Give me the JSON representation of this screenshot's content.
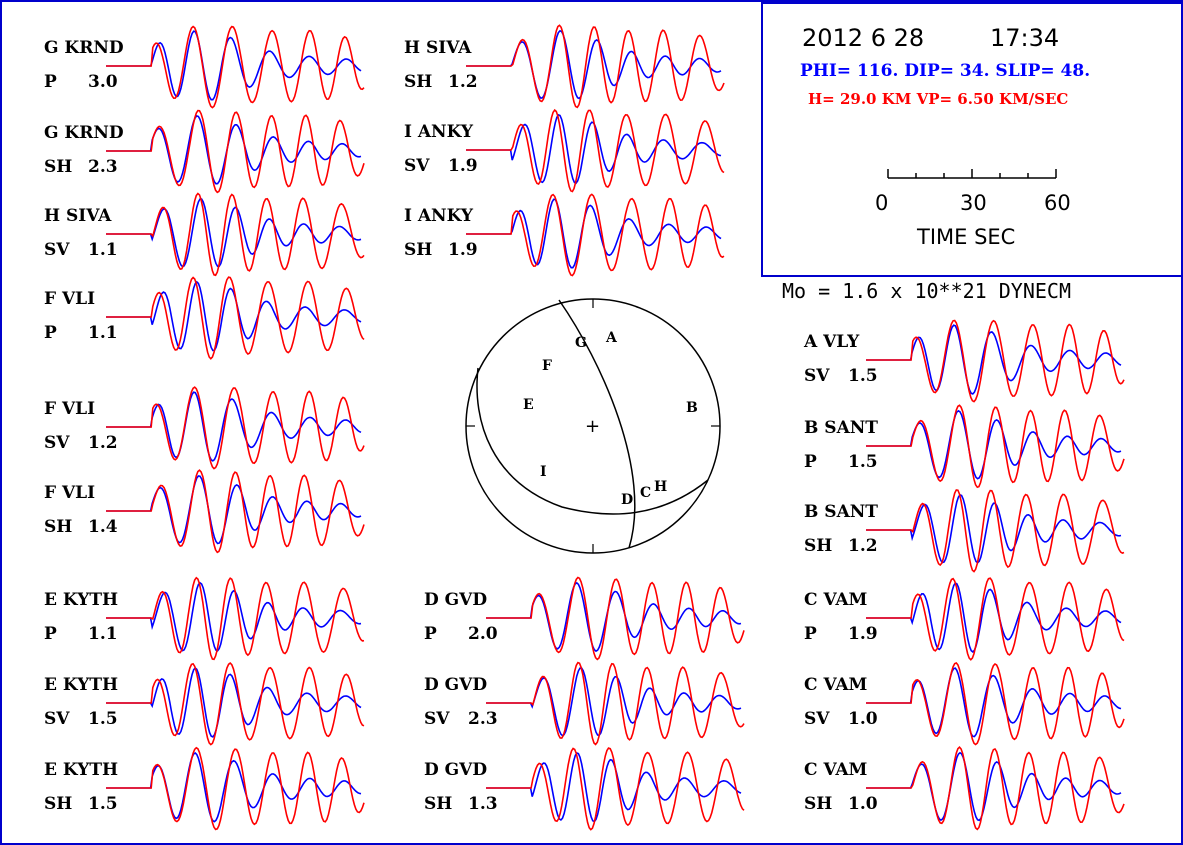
{
  "header": {
    "date": "2012  6 28",
    "time": "17:34",
    "params": "PHI= 116. DIP= 34. SLIP=  48.",
    "depth": "H= 29.0 KM  VP= 6.50 KM/SEC",
    "colors": {
      "frame": "#0000cc",
      "params": "#0000ff",
      "depth": "#ff0000"
    }
  },
  "time_scale": {
    "ticks": [
      "0",
      "30",
      "60"
    ],
    "label": "TIME  SEC"
  },
  "moment": "Mo =  1.6 x 10**21 DYNECM",
  "series_colors": {
    "observed": "#0000ff",
    "synthetic": "#ff0000"
  },
  "focal_sphere": {
    "center_mark": "+",
    "stations": [
      "A",
      "B",
      "C",
      "D",
      "E",
      "F",
      "G",
      "H",
      "I"
    ]
  },
  "traces": [
    {
      "station": "G KRND",
      "phase": "P",
      "value": "3.0"
    },
    {
      "station": "G KRND",
      "phase": "SH",
      "value": "2.3"
    },
    {
      "station": "H SIVA",
      "phase": "SV",
      "value": "1.1"
    },
    {
      "station": "F VLI",
      "phase": "P",
      "value": "1.1"
    },
    {
      "station": "F VLI",
      "phase": "SV",
      "value": "1.2"
    },
    {
      "station": "F VLI",
      "phase": "SH",
      "value": "1.4"
    },
    {
      "station": "E KYTH",
      "phase": "P",
      "value": "1.1"
    },
    {
      "station": "E KYTH",
      "phase": "SV",
      "value": "1.5"
    },
    {
      "station": "E KYTH",
      "phase": "SH",
      "value": "1.5"
    },
    {
      "station": "H SIVA",
      "phase": "SH",
      "value": "1.2"
    },
    {
      "station": "I ANKY",
      "phase": "SV",
      "value": "1.9"
    },
    {
      "station": "I ANKY",
      "phase": "SH",
      "value": "1.9"
    },
    {
      "station": "D GVD",
      "phase": "P",
      "value": "2.0"
    },
    {
      "station": "D GVD",
      "phase": "SV",
      "value": "2.3"
    },
    {
      "station": "D GVD",
      "phase": "SH",
      "value": "1.3"
    },
    {
      "station": "A VLY",
      "phase": "SV",
      "value": "1.5"
    },
    {
      "station": "B SANT",
      "phase": "P",
      "value": "1.5"
    },
    {
      "station": "B SANT",
      "phase": "SH",
      "value": "1.2"
    },
    {
      "station": "C VAM",
      "phase": "P",
      "value": "1.9"
    },
    {
      "station": "C VAM",
      "phase": "SV",
      "value": "1.0"
    },
    {
      "station": "C VAM",
      "phase": "SH",
      "value": "1.0"
    }
  ]
}
